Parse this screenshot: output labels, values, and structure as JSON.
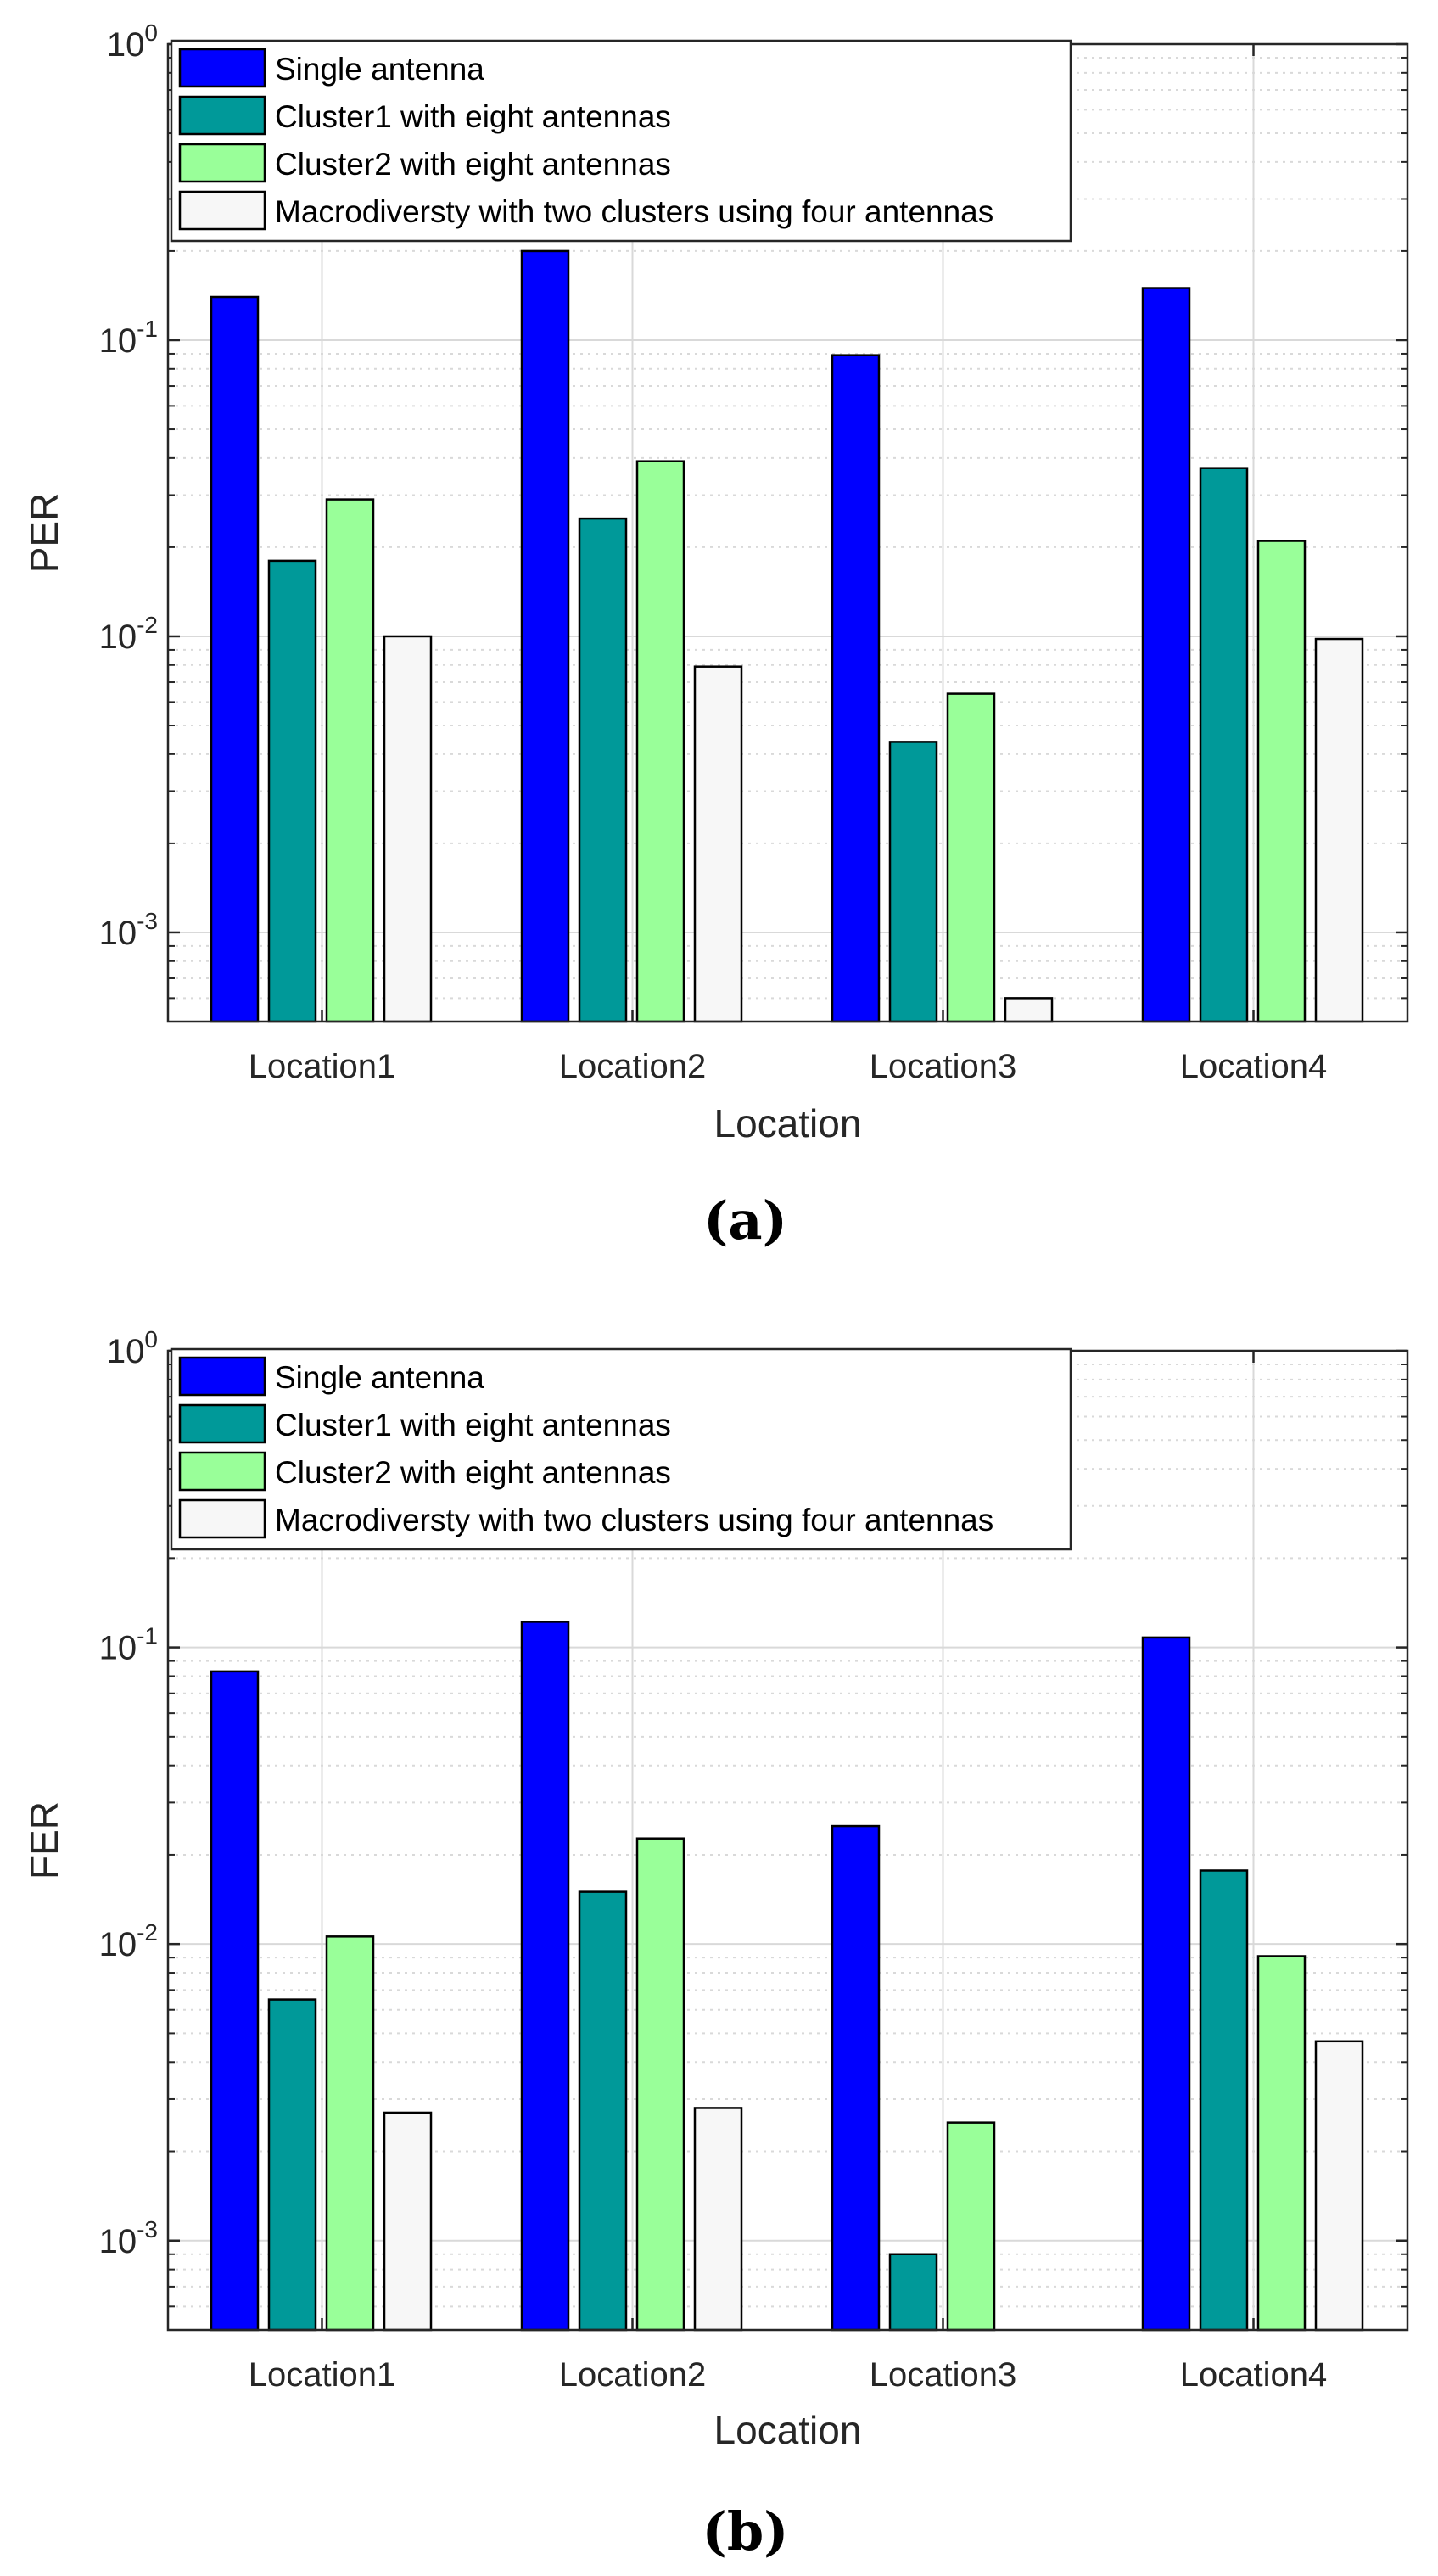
{
  "colors": {
    "series": [
      "#0000ff",
      "#009999",
      "#99ff99",
      "#f7f7f7"
    ],
    "grid_major": "#d9d9d9",
    "grid_minor": "#d9d9d9",
    "axis": "#262626"
  },
  "chart_data": [
    {
      "type": "bar",
      "panel_label": "(a)",
      "title": "",
      "xlabel": "Location",
      "ylabel": "PER",
      "yscale": "log",
      "ylim": [
        0.0005,
        1
      ],
      "grid": true,
      "legend_position": "top-left",
      "categories": [
        "Location1",
        "Location2",
        "Location3",
        "Location4"
      ],
      "yticks": [
        {
          "value": 1,
          "base": "10",
          "exp": "0"
        },
        {
          "value": 0.1,
          "base": "10",
          "exp": "-1"
        },
        {
          "value": 0.01,
          "base": "10",
          "exp": "-2"
        },
        {
          "value": 0.001,
          "base": "10",
          "exp": "-3"
        }
      ],
      "series": [
        {
          "name": "Single antenna",
          "values": [
            0.14,
            0.2,
            0.089,
            0.15
          ]
        },
        {
          "name": "Cluster1 with eight antennas",
          "values": [
            0.018,
            0.025,
            0.0044,
            0.037
          ]
        },
        {
          "name": "Cluster2 with eight antennas",
          "values": [
            0.029,
            0.039,
            0.0064,
            0.021
          ]
        },
        {
          "name": "Macrodiversty with two clusters using four antennas",
          "values": [
            0.01,
            0.0079,
            0.0006,
            0.0098
          ]
        }
      ]
    },
    {
      "type": "bar",
      "panel_label": "(b)",
      "title": "",
      "xlabel": "Location",
      "ylabel": "FER",
      "yscale": "log",
      "ylim": [
        0.0005,
        1
      ],
      "grid": true,
      "legend_position": "top-left",
      "categories": [
        "Location1",
        "Location2",
        "Location3",
        "Location4"
      ],
      "yticks": [
        {
          "value": 1,
          "base": "10",
          "exp": "0"
        },
        {
          "value": 0.1,
          "base": "10",
          "exp": "-1"
        },
        {
          "value": 0.01,
          "base": "10",
          "exp": "-2"
        },
        {
          "value": 0.001,
          "base": "10",
          "exp": "-3"
        }
      ],
      "series": [
        {
          "name": "Single antenna",
          "values": [
            0.083,
            0.122,
            0.025,
            0.108
          ]
        },
        {
          "name": "Cluster1 with eight antennas",
          "values": [
            0.0065,
            0.015,
            0.0009,
            0.0177
          ]
        },
        {
          "name": "Cluster2 with eight antennas",
          "values": [
            0.0106,
            0.0227,
            0.0025,
            0.0091
          ]
        },
        {
          "name": "Macrodiversty with two clusters using four antennas",
          "values": [
            0.0027,
            0.0028,
            0.0005,
            0.0047
          ]
        }
      ]
    }
  ]
}
